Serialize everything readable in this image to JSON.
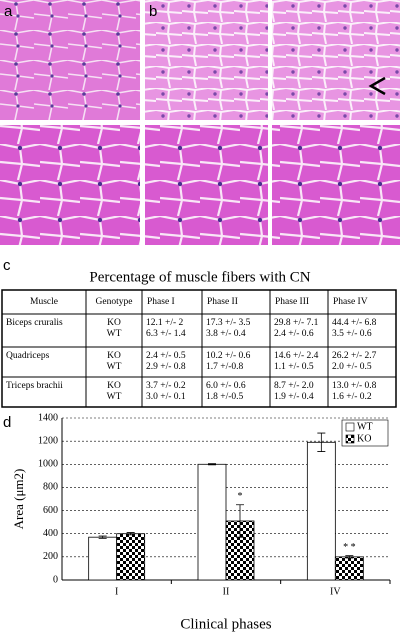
{
  "panel_labels": [
    "a",
    "b",
    "c",
    "d"
  ],
  "table": {
    "title": "Percentage of muscle fibers with CN",
    "header": [
      "Muscle",
      "Genotype",
      "Phase I",
      "Phase II",
      "Phase III",
      "Phase IV"
    ],
    "rows": [
      {
        "muscle": "Biceps cruralis",
        "genotype": [
          "KO",
          "WT"
        ],
        "phases": [
          [
            "12.1 +/- 2",
            "6.3 +/- 1.4"
          ],
          [
            "17.3 +/- 3.5",
            "3.8 +/- 0.4"
          ],
          [
            "29.8 +/- 7.1",
            "2.4 +/- 0.6"
          ],
          [
            "44.4 +/- 6.8",
            "3.5 +/- 0.6"
          ]
        ]
      },
      {
        "muscle": "Quadriceps",
        "genotype": [
          "KO",
          "WT"
        ],
        "phases": [
          [
            "2.4 +/- 0.5",
            "2.9 +/- 0.8"
          ],
          [
            "10.2 +/- 0.6",
            "1.7 +/-0.8"
          ],
          [
            "14.6 +/- 2.4",
            "1.1 +/- 0.5"
          ],
          [
            "26.2 +/- 2.7",
            "2.0 +/- 0.5"
          ]
        ]
      },
      {
        "muscle": "Triceps brachii",
        "genotype": [
          "KO",
          "WT"
        ],
        "phases": [
          [
            "3.7 +/- 0.2",
            "3.0 +/- 0.1"
          ],
          [
            "6.0 +/- 0.6",
            "1.8 +/-0.5"
          ],
          [
            "8.7 +/- 2.0",
            "1.9 +/- 0.4"
          ],
          [
            "13.0 +/- 0.8",
            "1.6 +/- 0.2"
          ]
        ]
      }
    ]
  },
  "chart_data": {
    "type": "bar",
    "x_label": "Clinical phases",
    "y_label": "Area (μm2)",
    "categories": [
      "I",
      "II",
      "IV"
    ],
    "series": [
      {
        "name": "WT",
        "color": "#ffffff",
        "pattern": "solid",
        "values": [
          370,
          1000,
          1190
        ],
        "errors": [
          10,
          5,
          80
        ],
        "significance": [
          null,
          null,
          null
        ]
      },
      {
        "name": "KO",
        "color": "#000000",
        "pattern": "checker",
        "values": [
          400,
          510,
          200
        ],
        "errors": [
          10,
          140,
          10
        ],
        "significance": [
          null,
          "*",
          "* *"
        ]
      }
    ],
    "ylim": [
      0,
      1400
    ],
    "yticks": [
      0,
      200,
      400,
      600,
      800,
      1000,
      1200,
      1400
    ],
    "grid": true,
    "legend": "top-right"
  }
}
